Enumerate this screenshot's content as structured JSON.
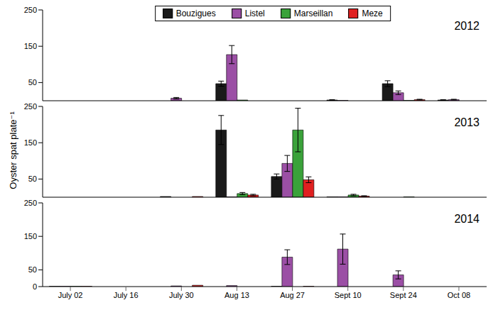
{
  "chart_data": [
    {
      "type": "bar",
      "title": "2012",
      "legend": "top",
      "tick_labels": "y",
      "categories": [
        "July 02",
        "July 16",
        "July 30",
        "Aug  13",
        "Aug 27",
        "Sept 10",
        "Sept 24",
        "Oct 08"
      ],
      "ylim": [
        0,
        250
      ],
      "yticks": [
        0,
        50,
        150,
        250
      ],
      "series": [
        {
          "name": "Bouzigues",
          "color": "#1a1a1a",
          "values": [
            0,
            0,
            0,
            47,
            0,
            2,
            47,
            2
          ],
          "errors": [
            0,
            0,
            0,
            7,
            0,
            1,
            8,
            1
          ]
        },
        {
          "name": "Listel",
          "color": "#9b4fa5",
          "values": [
            0,
            0,
            7,
            127,
            0,
            1,
            22,
            3
          ],
          "errors": [
            0,
            0,
            2,
            25,
            0,
            0,
            5,
            1
          ]
        },
        {
          "name": "Marseillan",
          "color": "#3aa23a",
          "values": [
            0,
            0,
            0,
            2,
            0,
            0,
            1,
            0
          ],
          "errors": [
            0,
            0,
            0,
            0,
            0,
            0,
            0,
            0
          ]
        },
        {
          "name": "Meze",
          "color": "#e02020",
          "values": [
            0,
            0,
            0,
            0,
            0,
            0,
            3,
            0
          ],
          "errors": [
            0,
            0,
            0,
            0,
            0,
            0,
            1,
            0
          ]
        }
      ]
    },
    {
      "type": "bar",
      "title": "2013",
      "tick_labels": "y",
      "ylabel": "Oyster spat plate⁻¹",
      "categories": [
        "July 02",
        "July 16",
        "July 30",
        "Aug  13",
        "Aug 27",
        "Sept 10",
        "Sept 24",
        "Oct 08"
      ],
      "ylim": [
        0,
        250
      ],
      "yticks": [
        0,
        50,
        150,
        250
      ],
      "series": [
        {
          "name": "Bouzigues",
          "color": "#1a1a1a",
          "values": [
            0,
            0,
            2,
            185,
            57,
            1,
            0,
            0
          ],
          "errors": [
            0,
            0,
            0,
            40,
            7,
            0,
            0,
            0
          ]
        },
        {
          "name": "Listel",
          "color": "#9b4fa5",
          "values": [
            0,
            0,
            0,
            1,
            93,
            1,
            0,
            0
          ],
          "errors": [
            0,
            0,
            0,
            0,
            22,
            0,
            0,
            0
          ]
        },
        {
          "name": "Marseillan",
          "color": "#3aa23a",
          "values": [
            0,
            0,
            0,
            10,
            185,
            6,
            1,
            0
          ],
          "errors": [
            0,
            0,
            0,
            3,
            60,
            2,
            0,
            0
          ]
        },
        {
          "name": "Meze",
          "color": "#e02020",
          "values": [
            0,
            0,
            2,
            6,
            48,
            3,
            0,
            0
          ],
          "errors": [
            0,
            0,
            0,
            2,
            8,
            1,
            0,
            0
          ]
        }
      ]
    },
    {
      "type": "bar",
      "title": "2014",
      "categories": [
        "July 02",
        "July 16",
        "July 30",
        "Aug  13",
        "Aug 27",
        "Sept 10",
        "Sept 24",
        "Oct 08"
      ],
      "ylim": [
        0,
        250
      ],
      "yticks": [
        0,
        50,
        150,
        250
      ],
      "series": [
        {
          "name": "Bouzigues",
          "color": "#1a1a1a",
          "values": [
            1,
            0,
            0,
            0,
            1,
            0,
            0,
            0
          ],
          "errors": [
            0,
            0,
            0,
            0,
            0,
            0,
            0,
            0
          ]
        },
        {
          "name": "Listel",
          "color": "#9b4fa5",
          "values": [
            1,
            0,
            2,
            3,
            88,
            112,
            35,
            0
          ],
          "errors": [
            0,
            0,
            0,
            0,
            22,
            45,
            12,
            0
          ]
        },
        {
          "name": "Marseillan",
          "color": "#3aa23a",
          "values": [
            1,
            0,
            0,
            0,
            0,
            0,
            0,
            0
          ],
          "errors": [
            0,
            0,
            0,
            0,
            0,
            0,
            0,
            0
          ]
        },
        {
          "name": "Meze",
          "color": "#e02020",
          "values": [
            1,
            0,
            4,
            0,
            1,
            0,
            0,
            0
          ],
          "errors": [
            0,
            0,
            0,
            0,
            0,
            0,
            0,
            0
          ]
        }
      ]
    }
  ]
}
